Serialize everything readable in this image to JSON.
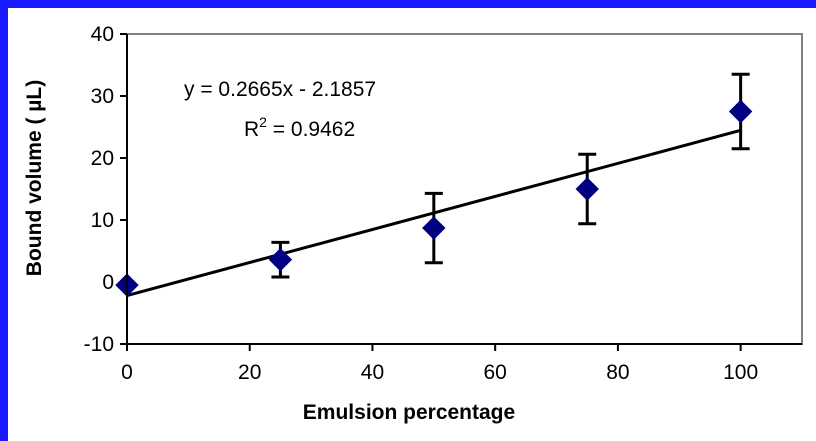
{
  "chart_data": {
    "type": "scatter",
    "title": "",
    "xlabel": "Emulsion percentage",
    "ylabel": "Bound volume ( µL)",
    "xlim": [
      0,
      110
    ],
    "ylim": [
      -10,
      40
    ],
    "xticks": [
      0,
      20,
      40,
      60,
      80,
      100
    ],
    "yticks": [
      -10,
      0,
      10,
      20,
      30,
      40
    ],
    "grid": false,
    "legend": "none",
    "series": [
      {
        "marker": "diamond",
        "color": "#000080",
        "points": [
          {
            "x": 0,
            "y": -0.5,
            "err": 0
          },
          {
            "x": 25,
            "y": 3.6,
            "err": 2.8
          },
          {
            "x": 50,
            "y": 8.7,
            "err": 5.6
          },
          {
            "x": 75,
            "y": 15.0,
            "err": 5.6
          },
          {
            "x": 100,
            "y": 27.5,
            "err": 6.0
          }
        ]
      }
    ],
    "trendline": {
      "slope": 0.2665,
      "intercept": -2.1857,
      "x_range": [
        0,
        100
      ]
    },
    "annotations": {
      "equation": "y = 0.2665x - 2.1857",
      "r2_prefix": "R",
      "r2_sup": "2",
      "r2_suffix": " = 0.9462"
    }
  }
}
